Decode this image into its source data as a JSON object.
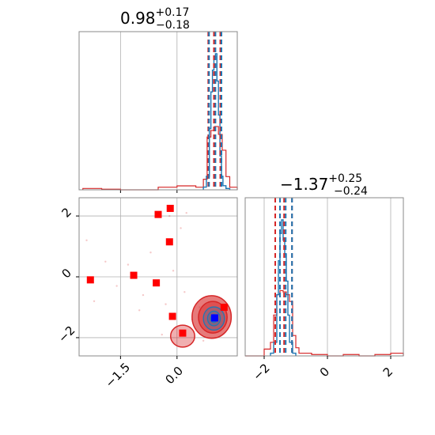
{
  "chart_data": {
    "type": "corner",
    "colors": {
      "primary": "#1f77b4",
      "secondary": "#d62728",
      "marker": "#ff0000",
      "truth": "#0000ff"
    },
    "parameter_1": {
      "title_main": "0.98",
      "title_plus": "+0.17",
      "title_minus": "−0.18",
      "median": 0.98,
      "plus": 0.17,
      "minus": 0.18,
      "xlim": [
        -2.6,
        1.6
      ],
      "xticks": [
        -1.5,
        0.0
      ],
      "xtick_labels": [
        "−1.5",
        "0.0"
      ],
      "blue_quantiles": [
        0.85,
        1.02,
        1.18
      ],
      "red_quantiles": [
        0.83,
        0.98,
        1.15
      ],
      "blue_hist": {
        "bin_edges": [
          0.7,
          0.78,
          0.86,
          0.9,
          0.94,
          0.98,
          1.02,
          1.06,
          1.1,
          1.14,
          1.18,
          1.22,
          1.3,
          1.4
        ],
        "counts": [
          0.02,
          0.1,
          0.45,
          0.72,
          0.88,
          0.96,
          1.0,
          0.8,
          0.55,
          0.25,
          0.1,
          0.03,
          0.01
        ]
      },
      "red_hist": {
        "bin_edges": [
          -2.5,
          -2.0,
          -1.5,
          -1.0,
          -0.5,
          0.0,
          0.5,
          0.7,
          0.8,
          0.9,
          1.0,
          1.1,
          1.2,
          1.3,
          1.4,
          1.6
        ],
        "counts": [
          0.01,
          0.005,
          0.0,
          0.0,
          0.02,
          0.03,
          0.02,
          0.08,
          0.4,
          0.45,
          0.48,
          0.42,
          0.3,
          0.1,
          0.02
        ]
      }
    },
    "parameter_2": {
      "title_main": "−1.37",
      "title_plus": "+0.25",
      "title_minus": "−0.24",
      "median": -1.37,
      "plus": 0.25,
      "minus": 0.24,
      "xlim": [
        -2.6,
        2.4
      ],
      "xticks": [
        -2,
        0,
        2
      ],
      "xtick_labels": [
        "−2",
        "0",
        "2"
      ],
      "blue_quantiles": [
        -1.5,
        -1.32,
        -1.12
      ],
      "red_quantiles": [
        -1.65,
        -1.37,
        -1.12
      ],
      "blue_hist": {
        "bin_edges": [
          -1.8,
          -1.7,
          -1.6,
          -1.55,
          -1.5,
          -1.45,
          -1.4,
          -1.35,
          -1.3,
          -1.25,
          -1.2,
          -1.1,
          -1.0
        ],
        "counts": [
          0.02,
          0.1,
          0.45,
          0.7,
          0.9,
          1.0,
          0.85,
          0.75,
          0.55,
          0.3,
          0.1,
          0.02
        ]
      },
      "red_hist": {
        "bin_edges": [
          -2.6,
          -2.0,
          -1.8,
          -1.7,
          -1.6,
          -1.5,
          -1.4,
          -1.3,
          -1.2,
          -1.1,
          -1.0,
          -0.9,
          -0.5,
          0.0,
          0.5,
          1.0,
          1.5,
          2.0,
          2.4
        ],
        "counts": [
          0.0,
          0.05,
          0.1,
          0.3,
          0.45,
          0.48,
          0.47,
          0.45,
          0.4,
          0.15,
          0.06,
          0.02,
          0.01,
          0.0,
          0.01,
          0.0,
          0.01,
          0.02
        ]
      }
    },
    "joint": {
      "xlim": [
        -2.6,
        1.6
      ],
      "ylim": [
        -2.6,
        2.6
      ],
      "yticks": [
        2,
        0,
        -2
      ],
      "ytick_labels": [
        "2",
        "0",
        "−2"
      ],
      "red_markers": [
        {
          "x": -2.3,
          "y": -0.1
        },
        {
          "x": -1.15,
          "y": 0.05
        },
        {
          "x": -0.55,
          "y": -0.2
        },
        {
          "x": -0.5,
          "y": 2.05
        },
        {
          "x": -0.18,
          "y": 2.25
        },
        {
          "x": -0.2,
          "y": 1.15
        },
        {
          "x": -0.12,
          "y": -1.3
        },
        {
          "x": 0.15,
          "y": -1.85
        },
        {
          "x": 1.25,
          "y": -1.0
        }
      ],
      "blue_marker": {
        "x": 1.0,
        "y": -1.35
      },
      "scatter_points": [
        {
          "x": -2.4,
          "y": 1.2
        },
        {
          "x": -1.9,
          "y": 0.5
        },
        {
          "x": -1.6,
          "y": -0.3
        },
        {
          "x": -1.3,
          "y": 0.4
        },
        {
          "x": -0.9,
          "y": -0.6
        },
        {
          "x": -0.7,
          "y": 0.8
        },
        {
          "x": -0.3,
          "y": -0.9
        },
        {
          "x": -0.1,
          "y": 0.2
        },
        {
          "x": 0.2,
          "y": -0.5
        },
        {
          "x": 0.4,
          "y": -1.4
        },
        {
          "x": 0.6,
          "y": -1.0
        },
        {
          "x": -0.2,
          "y": 2.0
        },
        {
          "x": 0.25,
          "y": 2.1
        },
        {
          "x": -1.0,
          "y": -1.1
        },
        {
          "x": -2.2,
          "y": -0.8
        },
        {
          "x": 0.7,
          "y": -2.1
        },
        {
          "x": -0.4,
          "y": -1.9
        },
        {
          "x": 0.1,
          "y": 1.6
        }
      ],
      "contours_red": [
        {
          "cx": 0.92,
          "cy": -1.32,
          "rx": 0.52,
          "ry": 0.7,
          "level": 3
        },
        {
          "cx": 0.95,
          "cy": -1.33,
          "rx": 0.38,
          "ry": 0.52,
          "level": 2
        },
        {
          "cx": 0.15,
          "cy": -1.95,
          "rx": 0.32,
          "ry": 0.36,
          "level": 1
        }
      ],
      "contours_blue": [
        {
          "cx": 0.98,
          "cy": -1.37,
          "rx": 0.28,
          "ry": 0.38,
          "level": 3
        },
        {
          "cx": 0.98,
          "cy": -1.37,
          "rx": 0.17,
          "ry": 0.24,
          "level": 2
        },
        {
          "cx": 0.98,
          "cy": -1.37,
          "rx": 0.09,
          "ry": 0.13,
          "level": 1
        }
      ]
    }
  }
}
